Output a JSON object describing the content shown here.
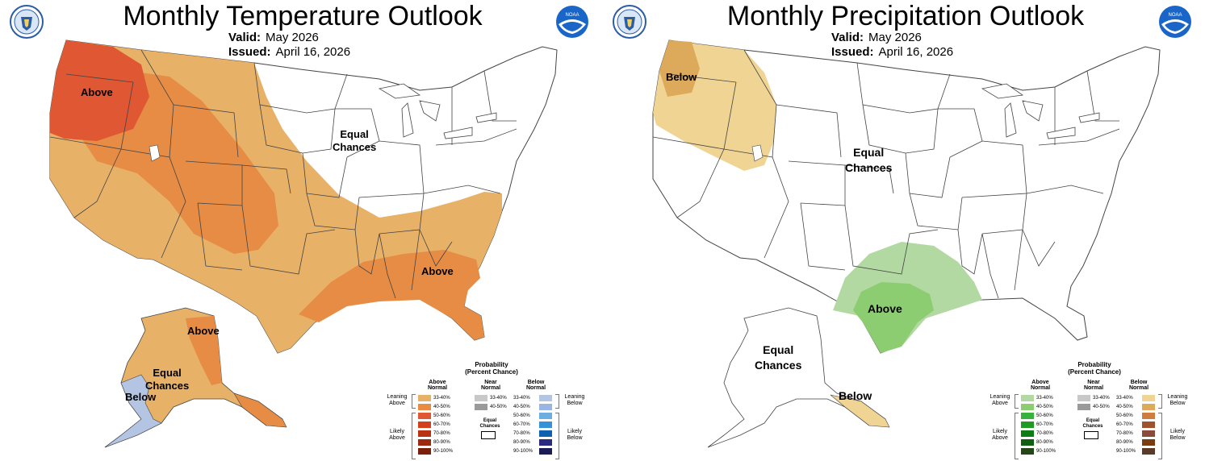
{
  "temperature": {
    "title": "Monthly Temperature Outlook",
    "valid_label": "Valid:",
    "valid_value": "May 2026",
    "issued_label": "Issued:",
    "issued_value": "April 16, 2026",
    "map_labels": {
      "above_west": "Above",
      "equal_chances": "Equal\nChances",
      "above_southeast": "Above",
      "above_alaska": "Above",
      "equal_chances_alaska": "Equal\nChances",
      "below_alaska": "Below"
    }
  },
  "precipitation": {
    "title": "Monthly Precipitation Outlook",
    "valid_label": "Valid:",
    "valid_value": "May 2026",
    "issued_label": "Issued:",
    "issued_value": "April 16, 2026",
    "map_labels": {
      "below_northwest": "Below",
      "equal_chances": "Equal\nChances",
      "above_texas": "Above",
      "equal_chances_alaska": "Equal\nChances",
      "below_alaska": "Below"
    }
  },
  "legend": {
    "title": "Probability\n(Percent Chance)",
    "above_header": "Above\nNormal",
    "near_header": "Near\nNormal",
    "below_header": "Below\nNormal",
    "leaning_above": "Leaning\nAbove",
    "likely_above": "Likely\nAbove",
    "leaning_below": "Leaning\nBelow",
    "likely_below": "Likely\nBelow",
    "equal_chances": "Equal\nChances",
    "ranges": [
      "33-40%",
      "40-50%",
      "50-60%",
      "60-70%",
      "70-80%",
      "80-90%",
      "90-100%"
    ],
    "near_ranges": [
      "33-40%",
      "40-50%"
    ]
  },
  "colors": {
    "temp_above": [
      "#e8b168",
      "#e68c45",
      "#e05733",
      "#d2401e",
      "#b83314",
      "#9c2a0f",
      "#7a200a"
    ],
    "temp_below": [
      "#b4c5e4",
      "#98b6e1",
      "#6caee0",
      "#3793d8",
      "#1060b0",
      "#2a2a7f",
      "#1c1c55"
    ],
    "precip_above": [
      "#b3d9a3",
      "#8ccd71",
      "#36b33a",
      "#1f9a23",
      "#0e7d15",
      "#0e6113",
      "#24471a"
    ],
    "precip_below": [
      "#f0d494",
      "#dcaa5a",
      "#d07c3f",
      "#a0522d",
      "#8b4b3b",
      "#7a3d0f",
      "#5a3a28"
    ],
    "near": [
      "#c8c8c8",
      "#9a9a9a"
    ],
    "state_line": "#444444"
  }
}
